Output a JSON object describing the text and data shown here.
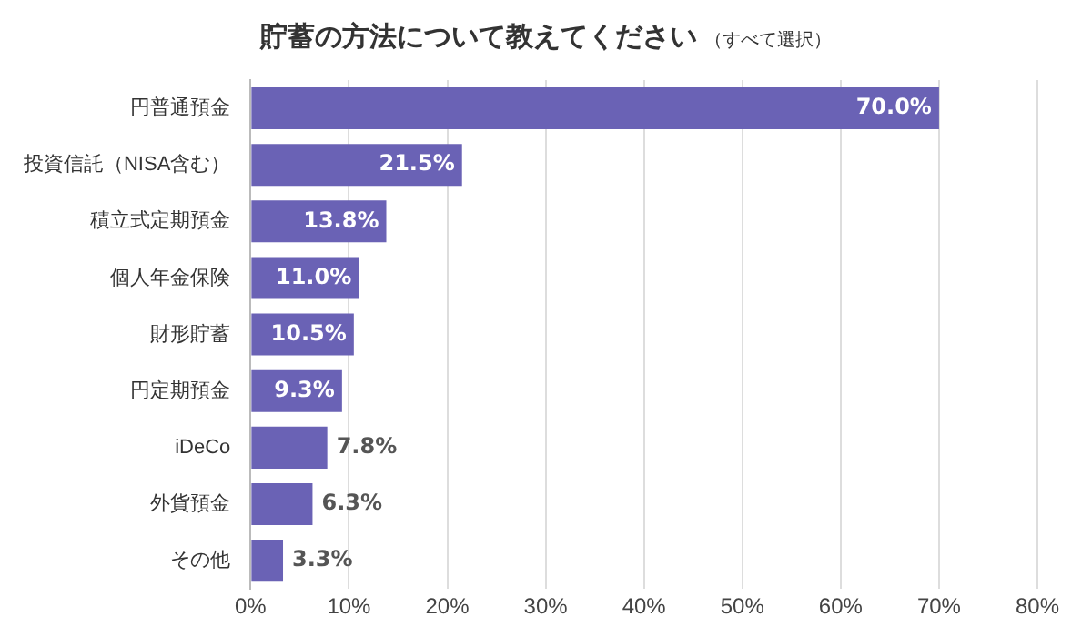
{
  "chart_data": {
    "type": "bar",
    "orientation": "horizontal",
    "title": "貯蓄の方法について教えてください",
    "subtitle": "（すべて選択）",
    "categories": [
      "円普通預金",
      "投資信託（NISA含む）",
      "積立式定期預金",
      "個人年金保険",
      "財形貯蓄",
      "円定期預金",
      "iDeCo",
      "外貨預金",
      "その他"
    ],
    "values": [
      70.0,
      21.5,
      13.8,
      11.0,
      10.5,
      9.3,
      7.8,
      6.3,
      3.3
    ],
    "value_labels": [
      "70.0%",
      "21.5%",
      "13.8%",
      "11.0%",
      "10.5%",
      "9.3%",
      "7.8%",
      "6.3%",
      "3.3%"
    ],
    "color": "#6a62b5",
    "xlim": [
      0,
      80
    ],
    "xticks": [
      {
        "value": 0,
        "label": "0%"
      },
      {
        "value": 10,
        "label": "10%"
      },
      {
        "value": 20,
        "label": "20%"
      },
      {
        "value": 30,
        "label": "30%"
      },
      {
        "value": 40,
        "label": "40%"
      },
      {
        "value": 50,
        "label": "50%"
      },
      {
        "value": 60,
        "label": "60%"
      },
      {
        "value": 70,
        "label": "70%"
      },
      {
        "value": 80,
        "label": "80%"
      }
    ],
    "grid": "x",
    "legend": false
  }
}
